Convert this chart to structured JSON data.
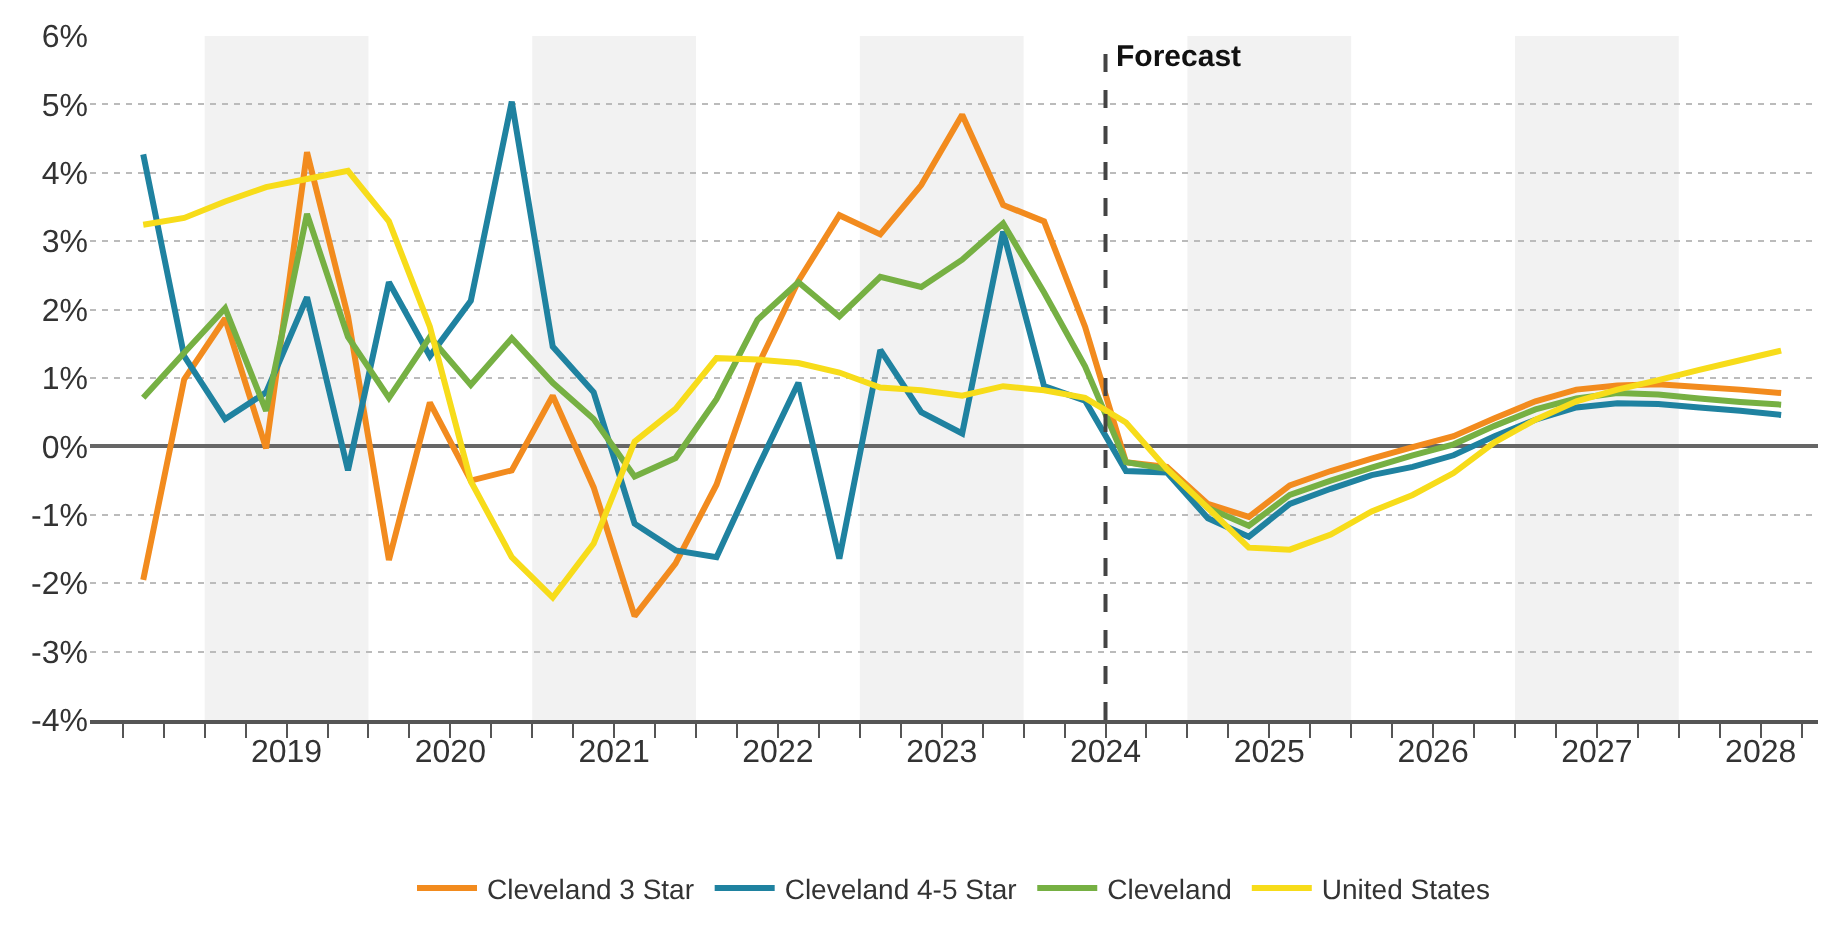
{
  "chart_data": {
    "type": "line",
    "x": [
      2018.625,
      2018.875,
      2019.125,
      2019.375,
      2019.625,
      2019.875,
      2020.125,
      2020.375,
      2020.625,
      2020.875,
      2021.125,
      2021.375,
      2021.625,
      2021.875,
      2022.125,
      2022.375,
      2022.625,
      2022.875,
      2023.125,
      2023.375,
      2023.625,
      2023.875,
      2024.125,
      2024.375,
      2024.625,
      2024.875,
      2025.125,
      2025.375,
      2025.625,
      2025.875,
      2026.125,
      2026.375,
      2026.625,
      2026.875,
      2027.125,
      2027.375,
      2027.625,
      2027.875,
      2028.125,
      2028.375,
      2028.625
    ],
    "series": [
      {
        "name": "Cleveland 3 Star",
        "color": "#f28b1e",
        "values": [
          -1.95,
          0.98,
          1.87,
          -0.03,
          4.3,
          1.9,
          -1.66,
          0.64,
          -0.5,
          -0.35,
          0.74,
          -0.6,
          -2.48,
          -1.71,
          -0.56,
          1.17,
          2.42,
          3.38,
          3.1,
          3.82,
          4.85,
          3.53,
          3.29,
          1.75,
          -0.23,
          -0.3,
          -0.84,
          -1.03,
          -0.57,
          -0.36,
          -0.18,
          -0.01,
          0.15,
          0.41,
          0.66,
          0.83,
          0.89,
          0.91,
          0.87,
          0.83,
          0.78
        ]
      },
      {
        "name": "Cleveland 4-5 Star",
        "color": "#1f82a0",
        "values": [
          4.27,
          1.32,
          0.4,
          0.79,
          2.18,
          -0.35,
          2.4,
          1.32,
          2.13,
          5.04,
          1.46,
          0.79,
          -1.13,
          -1.52,
          -1.62,
          -0.32,
          0.93,
          -1.64,
          1.41,
          0.5,
          0.19,
          3.14,
          0.88,
          0.67,
          -0.36,
          -0.38,
          -1.05,
          -1.32,
          -0.84,
          -0.62,
          -0.42,
          -0.3,
          -0.13,
          0.15,
          0.39,
          0.57,
          0.63,
          0.62,
          0.57,
          0.52,
          0.46
        ]
      },
      {
        "name": "Cleveland",
        "color": "#76b043",
        "values": [
          0.71,
          1.37,
          2.02,
          0.52,
          3.4,
          1.6,
          0.71,
          1.6,
          0.9,
          1.58,
          0.93,
          0.4,
          -0.44,
          -0.17,
          0.69,
          1.85,
          2.4,
          1.9,
          2.48,
          2.33,
          2.73,
          3.26,
          2.25,
          1.17,
          -0.23,
          -0.33,
          -0.9,
          -1.16,
          -0.71,
          -0.5,
          -0.31,
          -0.13,
          0.03,
          0.3,
          0.54,
          0.7,
          0.78,
          0.76,
          0.7,
          0.65,
          0.61
        ]
      },
      {
        "name": "United States",
        "color": "#f7dc1a",
        "values": [
          3.24,
          3.34,
          3.58,
          3.79,
          3.91,
          4.03,
          3.29,
          1.75,
          -0.51,
          -1.62,
          -2.21,
          -1.42,
          0.07,
          0.55,
          1.29,
          1.27,
          1.22,
          1.08,
          0.86,
          0.82,
          0.74,
          0.88,
          0.82,
          0.71,
          0.35,
          -0.33,
          -0.9,
          -1.48,
          -1.51,
          -1.29,
          -0.95,
          -0.71,
          -0.39,
          0.06,
          0.39,
          0.66,
          0.83,
          0.97,
          1.12,
          1.26,
          1.4
        ]
      }
    ],
    "xlim": [
      2018.3,
      2028.85
    ],
    "xticks": [
      {
        "value": 2019.5,
        "label": "2019"
      },
      {
        "value": 2020.5,
        "label": "2020"
      },
      {
        "value": 2021.5,
        "label": "2021"
      },
      {
        "value": 2022.5,
        "label": "2022"
      },
      {
        "value": 2023.5,
        "label": "2023"
      },
      {
        "value": 2024.5,
        "label": "2024"
      },
      {
        "value": 2025.5,
        "label": "2025"
      },
      {
        "value": 2026.5,
        "label": "2026"
      },
      {
        "value": 2027.5,
        "label": "2027"
      },
      {
        "value": 2028.5,
        "label": "2028"
      }
    ],
    "ylim": [
      -4,
      6
    ],
    "yticks": [
      {
        "value": 6,
        "label": "6%"
      },
      {
        "value": 5,
        "label": "5%"
      },
      {
        "value": 4,
        "label": "4%"
      },
      {
        "value": 3,
        "label": "3%"
      },
      {
        "value": 2,
        "label": "2%"
      },
      {
        "value": 1,
        "label": "1%"
      },
      {
        "value": 0,
        "label": "0%"
      },
      {
        "value": -1,
        "label": "-1%"
      },
      {
        "value": -2,
        "label": "-2%"
      },
      {
        "value": -3,
        "label": "-3%"
      },
      {
        "value": -4,
        "label": "-4%"
      }
    ],
    "ref_lines": [
      {
        "axis": "x",
        "value": 2024.5,
        "label": "Forecast",
        "line_style": "dashed",
        "color": "#444444"
      }
    ],
    "bands": [
      {
        "axis": "x",
        "from": 2019,
        "to": 2020,
        "color": "#f2f2f2"
      },
      {
        "axis": "x",
        "from": 2021,
        "to": 2022,
        "color": "#f2f2f2"
      },
      {
        "axis": "x",
        "from": 2023,
        "to": 2024,
        "color": "#f2f2f2"
      },
      {
        "axis": "x",
        "from": 2025,
        "to": 2026,
        "color": "#f2f2f2"
      },
      {
        "axis": "x",
        "from": 2027,
        "to": 2028,
        "color": "#f2f2f2"
      }
    ],
    "grid": "y",
    "legend": "bottom",
    "marker": "none",
    "line_style": "solid"
  }
}
